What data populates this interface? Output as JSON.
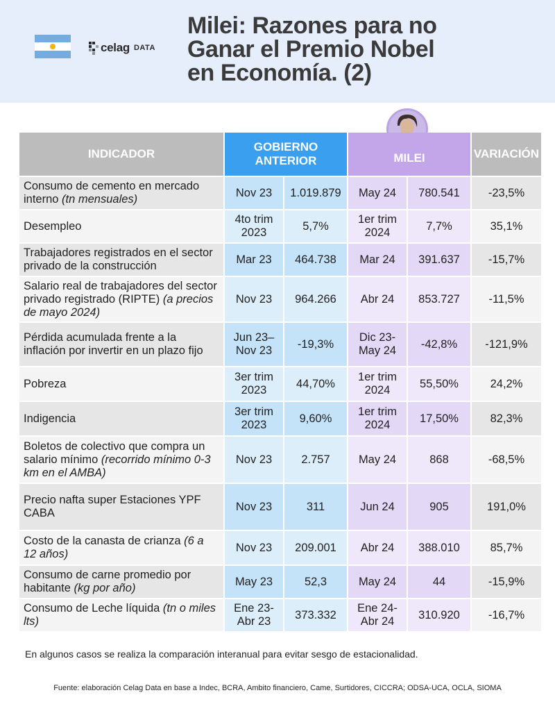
{
  "header": {
    "title_lines": [
      "Milei: Razones para no",
      "Ganar el Premio Nobel",
      "en Economía. (2)"
    ],
    "logo_word": "celag",
    "logo_suffix": "DATA"
  },
  "table": {
    "columns": {
      "indicador": "INDICADOR",
      "gobierno_line1": "GOBIERNO",
      "gobierno_line2": "ANTERIOR",
      "milei": "MILEI",
      "variacion": "VARIACIÓN"
    },
    "rows": [
      {
        "indicator": "Consumo de cemento en mercado interno",
        "unit": "(tn mensuales)",
        "prev_period": "Nov 23",
        "prev_value": "1.019.879",
        "milei_period": "May 24",
        "milei_value": "780.541",
        "variation": "-23,5%"
      },
      {
        "indicator": "Desempleo",
        "unit": "",
        "prev_period": "4to trim 2023",
        "prev_value": "5,7%",
        "milei_period": "1er trim 2024",
        "milei_value": "7,7%",
        "variation": "35,1%"
      },
      {
        "indicator": "Trabajadores registrados en el sector privado de la construcción",
        "unit": "",
        "prev_period": "Mar 23",
        "prev_value": "464.738",
        "milei_period": "Mar 24",
        "milei_value": "391.637",
        "variation": "-15,7%"
      },
      {
        "indicator": "Salario real de trabajadores del sector privado registrado (RIPTE)",
        "unit": "(a precios de mayo 2024)",
        "prev_period": "Nov 23",
        "prev_value": "964.266",
        "milei_period": "Abr 24",
        "milei_value": "853.727",
        "variation": "-11,5%"
      },
      {
        "indicator": "Pérdida acumulada frente a la inflación por invertir en un plazo fijo",
        "unit": "",
        "prev_period": "Jun 23– Nov 23",
        "prev_value": "-19,3%",
        "milei_period": "Dic 23- May 24",
        "milei_value": "-42,8%",
        "variation": "-121,9%"
      },
      {
        "indicator": "Pobreza",
        "unit": "",
        "prev_period": "3er trim 2023",
        "prev_value": "44,70%",
        "milei_period": "1er trim 2024",
        "milei_value": "55,50%",
        "variation": "24,2%"
      },
      {
        "indicator": "Indigencia",
        "unit": "",
        "prev_period": "3er trim 2023",
        "prev_value": "9,60%",
        "milei_period": "1er trim 2024",
        "milei_value": "17,50%",
        "variation": "82,3%"
      },
      {
        "indicator": "Boletos de colectivo que compra un salario mínimo",
        "unit": "(recorrido mínimo 0-3 km en el AMBA)",
        "prev_period": "Nov 23",
        "prev_value": "2.757",
        "milei_period": "May 24",
        "milei_value": "868",
        "variation": "-68,5%"
      },
      {
        "indicator": "Precio nafta super Estaciones YPF CABA",
        "unit": "",
        "prev_period": "Nov 23",
        "prev_value": "311",
        "milei_period": "Jun 24",
        "milei_value": "905",
        "variation": "191,0%"
      },
      {
        "indicator": "Costo de la canasta de crianza",
        "unit": "(6 a 12 años)",
        "prev_period": "Nov 23",
        "prev_value": "209.001",
        "milei_period": "Abr 24",
        "milei_value": "388.010",
        "variation": "85,7%"
      },
      {
        "indicator": "Consumo de carne promedio por habitante",
        "unit": "(kg por año)",
        "prev_period": "May 23",
        "prev_value": "52,3",
        "milei_period": "May 24",
        "milei_value": "44",
        "variation": "-15,9%"
      },
      {
        "indicator": "Consumo de Leche líquida",
        "unit": "(tn o miles lts)",
        "prev_period": "Ene 23- Abr 23",
        "prev_value": "373.332",
        "milei_period": "Ene 24- Abr 24",
        "milei_value": "310.920",
        "variation": "-16,7%"
      }
    ]
  },
  "footer": {
    "note": "En algunos casos se realiza la comparación interanual para evitar sesgo de estacionalidad.",
    "source": "Fuente: elaboración Celag Data en base a Indec, BCRA, Ambito financiero, Came, Surtidores, CICCRA; ODSA-UCA, OCLA, SIOMA"
  },
  "colors": {
    "header_bg": "#e6eefb",
    "gobierno_blue": "#3b9ff0",
    "milei_purple": "#c3a6ea",
    "gray_header": "#bcbcbc"
  }
}
